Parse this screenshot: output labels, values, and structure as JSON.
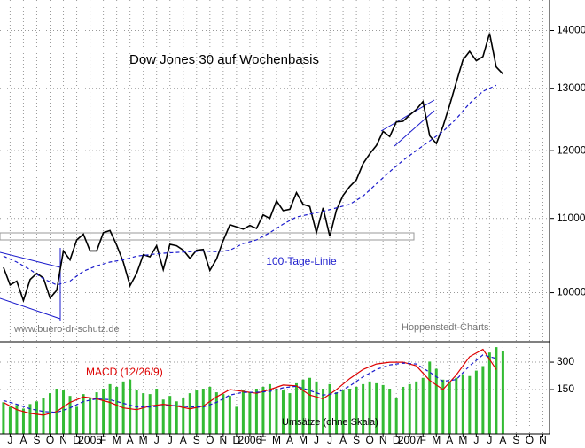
{
  "chart_data": [
    {
      "type": "line",
      "title": "Dow Jones 30 auf Wochenbasis",
      "annotations": [
        "www.buero-dr-schutz.de",
        "Hoppenstedt-Charts"
      ],
      "log": true,
      "grid": true,
      "xlim": [
        -0.26,
        41
      ],
      "ylim": [
        9400,
        14560
      ],
      "yticks": [
        10000,
        11000,
        12000,
        13000,
        14000
      ],
      "series": [
        {
          "color": "#000000",
          "x": [
            0,
            0.5,
            1,
            1.5,
            2,
            2.5,
            3,
            3.5,
            4,
            4.5,
            5,
            5.5,
            6,
            6.5,
            7,
            7.5,
            8,
            8.5,
            9,
            9.5,
            10,
            10.5,
            11,
            11.5,
            12,
            12.5,
            13,
            13.5,
            14,
            14.5,
            15,
            15.5,
            16,
            16.5,
            17,
            17.5,
            18,
            18.5,
            19,
            19.5,
            20,
            20.5,
            21,
            21.5,
            22,
            22.5,
            23,
            23.5,
            24,
            24.5,
            25,
            25.5,
            26,
            26.5,
            27,
            27.5,
            28,
            28.5,
            29,
            29.5,
            30,
            30.5,
            31,
            31.5,
            32,
            32.5,
            33,
            33.5,
            34,
            34.5,
            35,
            35.5,
            36,
            36.5,
            37,
            37.5
          ],
          "values": [
            10330,
            10100,
            10150,
            9900,
            10170,
            10250,
            10190,
            9930,
            10030,
            10550,
            10430,
            10700,
            10780,
            10550,
            10550,
            10800,
            10830,
            10630,
            10400,
            10090,
            10250,
            10500,
            10470,
            10620,
            10300,
            10640,
            10620,
            10560,
            10450,
            10560,
            10570,
            10290,
            10440,
            10690,
            10910,
            10880,
            10850,
            10900,
            10860,
            11050,
            11000,
            11250,
            11110,
            11130,
            11370,
            11200,
            11170,
            10800,
            11150,
            10750,
            11120,
            11330,
            11460,
            11560,
            11800,
            11950,
            12080,
            12300,
            12220,
            12450,
            12460,
            12560,
            12650,
            12780,
            12230,
            12110,
            12380,
            12720,
            13100,
            13480,
            13630,
            13470,
            13540,
            13950,
            13360,
            13240
          ]
        },
        {
          "name": "100-Tage-Linie",
          "color": "#1a1acc",
          "dashed": true,
          "x": [
            0,
            1,
            2,
            3,
            4,
            5,
            6,
            7,
            8,
            9,
            10,
            11,
            12,
            13,
            14,
            15,
            16,
            17,
            18,
            19,
            20,
            21,
            22,
            23,
            24,
            25,
            26,
            27,
            28,
            29,
            30,
            31,
            32,
            33,
            34,
            35,
            36,
            37
          ],
          "values": [
            10480,
            10400,
            10300,
            10180,
            10100,
            10150,
            10280,
            10350,
            10400,
            10430,
            10480,
            10500,
            10520,
            10530,
            10540,
            10550,
            10540,
            10560,
            10650,
            10700,
            10800,
            10920,
            11020,
            11060,
            11100,
            11150,
            11200,
            11320,
            11500,
            11680,
            11850,
            12000,
            12150,
            12300,
            12500,
            12750,
            12950,
            13050
          ]
        }
      ]
    },
    {
      "type": "line",
      "xlim": [
        -0.26,
        41
      ],
      "ylim": [
        -92,
        402
      ],
      "yticks": [
        150,
        300
      ],
      "y2lim": [
        0,
        100
      ],
      "xticks": [
        {
          "value": 0.5,
          "label": "J"
        },
        {
          "value": 1.5,
          "label": "A"
        },
        {
          "value": 2.5,
          "label": "S"
        },
        {
          "value": 3.5,
          "label": "O"
        },
        {
          "value": 4.5,
          "label": "N"
        },
        {
          "value": 5.5,
          "label": "D"
        },
        {
          "value": 6.5,
          "label": "2005"
        },
        {
          "value": 7.5,
          "label": "F"
        },
        {
          "value": 8.5,
          "label": "M"
        },
        {
          "value": 9.5,
          "label": "A"
        },
        {
          "value": 10.5,
          "label": "M"
        },
        {
          "value": 11.5,
          "label": "J"
        },
        {
          "value": 12.5,
          "label": "J"
        },
        {
          "value": 13.5,
          "label": "A"
        },
        {
          "value": 14.5,
          "label": "S"
        },
        {
          "value": 15.5,
          "label": "O"
        },
        {
          "value": 16.5,
          "label": "N"
        },
        {
          "value": 17.5,
          "label": "D"
        },
        {
          "value": 18.5,
          "label": "2006"
        },
        {
          "value": 19.5,
          "label": "F"
        },
        {
          "value": 20.5,
          "label": "M"
        },
        {
          "value": 21.5,
          "label": "A"
        },
        {
          "value": 22.5,
          "label": "M"
        },
        {
          "value": 23.5,
          "label": "J"
        },
        {
          "value": 24.5,
          "label": "J"
        },
        {
          "value": 25.5,
          "label": "A"
        },
        {
          "value": 26.5,
          "label": "S"
        },
        {
          "value": 27.5,
          "label": "O"
        },
        {
          "value": 28.5,
          "label": "N"
        },
        {
          "value": 29.5,
          "label": "D"
        },
        {
          "value": 30.5,
          "label": "2007"
        },
        {
          "value": 31.5,
          "label": "F"
        },
        {
          "value": 32.5,
          "label": "M"
        },
        {
          "value": 33.5,
          "label": "A"
        },
        {
          "value": 34.5,
          "label": "M"
        },
        {
          "value": 35.5,
          "label": "J"
        },
        {
          "value": 36.5,
          "label": "J"
        },
        {
          "value": 37.5,
          "label": "A"
        },
        {
          "value": 38.5,
          "label": "S"
        },
        {
          "value": 39.5,
          "label": "O"
        },
        {
          "value": 40.5,
          "label": "N"
        }
      ],
      "series": [
        {
          "name": "Umsätze (ohne Skala)",
          "type": "bar",
          "axis": "y2",
          "color": "#33bb33",
          "x": [
            0,
            0.5,
            1,
            1.5,
            2,
            2.5,
            3,
            3.5,
            4,
            4.5,
            5,
            5.5,
            6,
            6.5,
            7,
            7.5,
            8,
            8.5,
            9,
            9.5,
            10,
            10.5,
            11,
            11.5,
            12,
            12.5,
            13,
            13.5,
            14,
            14.5,
            15,
            15.5,
            16,
            16.5,
            17,
            17.5,
            18,
            18.5,
            19,
            19.5,
            20,
            20.5,
            21,
            21.5,
            22,
            22.5,
            23,
            23.5,
            24,
            24.5,
            25,
            25.5,
            26,
            26.5,
            27,
            27.5,
            28,
            28.5,
            29,
            29.5,
            30,
            30.5,
            31,
            31.5,
            32,
            32.5,
            33,
            33.5,
            34,
            34.5,
            35,
            35.5,
            36,
            36.5,
            37,
            37.5
          ],
          "values": [
            35,
            30,
            32,
            28,
            33,
            36,
            40,
            45,
            50,
            48,
            42,
            30,
            44,
            40,
            46,
            50,
            55,
            52,
            58,
            60,
            48,
            45,
            44,
            50,
            38,
            42,
            36,
            40,
            45,
            48,
            50,
            52,
            46,
            44,
            42,
            30,
            48,
            46,
            50,
            52,
            55,
            50,
            48,
            45,
            56,
            60,
            62,
            58,
            50,
            55,
            46,
            48,
            50,
            52,
            55,
            58,
            56,
            54,
            50,
            40,
            52,
            55,
            58,
            62,
            80,
            72,
            60,
            58,
            62,
            66,
            64,
            70,
            75,
            90,
            96,
            92
          ]
        },
        {
          "name": "MACD (12/26/9)",
          "color": "#dd0000",
          "x": [
            0,
            1,
            2,
            3,
            4,
            5,
            6,
            7,
            8,
            9,
            10,
            11,
            12,
            13,
            14,
            15,
            16,
            17,
            18,
            19,
            20,
            21,
            22,
            23,
            24,
            25,
            26,
            27,
            28,
            29,
            30,
            31,
            32,
            33,
            34,
            35,
            36,
            37
          ],
          "values": [
            80,
            40,
            20,
            10,
            30,
            80,
            110,
            100,
            80,
            50,
            40,
            60,
            70,
            60,
            45,
            60,
            110,
            150,
            140,
            130,
            150,
            175,
            170,
            120,
            100,
            150,
            210,
            260,
            290,
            300,
            300,
            280,
            200,
            150,
            230,
            330,
            370,
            260
          ]
        },
        {
          "color": "#1a1acc",
          "dashed": true,
          "x": [
            0,
            1,
            2,
            3,
            4,
            5,
            6,
            7,
            8,
            9,
            10,
            11,
            12,
            13,
            14,
            15,
            16,
            17,
            18,
            19,
            20,
            21,
            22,
            23,
            24,
            25,
            26,
            27,
            28,
            29,
            30,
            31,
            32,
            33,
            34,
            35,
            36,
            37
          ],
          "values": [
            90,
            70,
            45,
            30,
            25,
            50,
            85,
            100,
            95,
            75,
            55,
            55,
            62,
            63,
            55,
            55,
            80,
            120,
            135,
            135,
            140,
            160,
            168,
            145,
            120,
            130,
            170,
            220,
            260,
            285,
            295,
            290,
            245,
            195,
            205,
            280,
            340,
            320
          ]
        }
      ]
    }
  ]
}
